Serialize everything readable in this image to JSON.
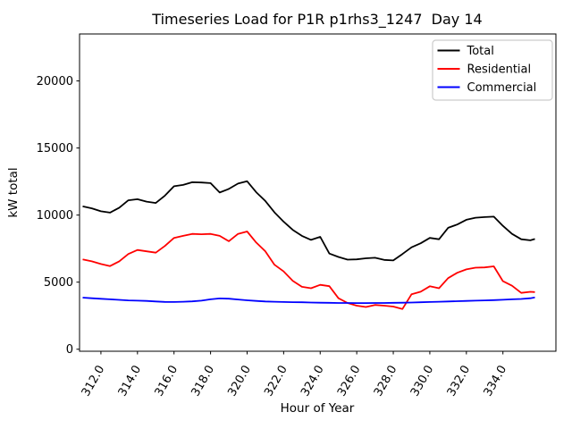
{
  "chart_data": {
    "type": "line",
    "title": "Timeseries Load for P1R p1rhs3_1247  Day 14",
    "xlabel": "Hour of Year",
    "ylabel": "kW total",
    "xlim": [
      310.83,
      336.9
    ],
    "ylim": [
      -150,
      23500
    ],
    "grid": false,
    "background": "#ffffff",
    "xticks": [
      312,
      314,
      316,
      318,
      320,
      322,
      324,
      326,
      328,
      330,
      332,
      334
    ],
    "xtick_labels": [
      "312.0",
      "314.0",
      "316.0",
      "318.0",
      "320.0",
      "322.0",
      "324.0",
      "326.0",
      "328.0",
      "330.0",
      "332.0",
      "334.0"
    ],
    "yticks": [
      0,
      5000,
      10000,
      15000,
      20000
    ],
    "ytick_labels": [
      "0",
      "5000",
      "10000",
      "15000",
      "20000"
    ],
    "legend": {
      "position": "upper right",
      "border_color": "#cccccc",
      "background": "#ffffff"
    },
    "x": [
      311,
      311.5,
      312,
      312.5,
      313,
      313.5,
      314,
      314.5,
      315,
      315.5,
      316,
      316.5,
      317,
      317.5,
      318,
      318.5,
      319,
      319.5,
      320,
      320.5,
      321,
      321.5,
      322,
      322.5,
      323,
      323.5,
      324,
      324.5,
      325,
      325.5,
      326,
      326.5,
      327,
      327.5,
      328,
      328.5,
      329,
      329.5,
      330,
      330.5,
      331,
      331.5,
      332,
      332.5,
      333,
      333.5,
      334,
      334.5,
      335,
      335.5,
      335.75
    ],
    "series": [
      {
        "name": "Total",
        "color": "#000000",
        "values": [
          10650,
          10500,
          10280,
          10180,
          10550,
          11100,
          11180,
          11000,
          10900,
          11450,
          12150,
          12250,
          12450,
          12430,
          12380,
          11680,
          11950,
          12350,
          12520,
          11700,
          11050,
          10200,
          9500,
          8900,
          8450,
          8150,
          8380,
          7130,
          6880,
          6680,
          6700,
          6780,
          6820,
          6660,
          6620,
          7100,
          7600,
          7900,
          8300,
          8200,
          9050,
          9300,
          9650,
          9800,
          9850,
          9880,
          9200,
          8600,
          8200,
          8120,
          8220
        ]
      },
      {
        "name": "Residential",
        "color": "#ff0000",
        "values": [
          6700,
          6550,
          6350,
          6200,
          6550,
          7100,
          7400,
          7300,
          7200,
          7700,
          8300,
          8450,
          8600,
          8570,
          8600,
          8450,
          8050,
          8600,
          8780,
          7950,
          7300,
          6300,
          5800,
          5100,
          4650,
          4550,
          4800,
          4700,
          3800,
          3450,
          3250,
          3150,
          3300,
          3250,
          3180,
          3000,
          4100,
          4290,
          4690,
          4550,
          5300,
          5700,
          5950,
          6080,
          6100,
          6180,
          5070,
          4730,
          4200,
          4280,
          4260
        ]
      },
      {
        "name": "Commercial",
        "color": "#0000ff",
        "values": [
          3850,
          3800,
          3760,
          3720,
          3680,
          3640,
          3620,
          3600,
          3560,
          3530,
          3520,
          3540,
          3570,
          3620,
          3720,
          3790,
          3770,
          3710,
          3650,
          3600,
          3560,
          3540,
          3520,
          3510,
          3500,
          3480,
          3470,
          3460,
          3450,
          3450,
          3440,
          3440,
          3450,
          3450,
          3460,
          3470,
          3480,
          3500,
          3520,
          3540,
          3560,
          3580,
          3600,
          3620,
          3640,
          3660,
          3690,
          3720,
          3750,
          3800,
          3860
        ]
      }
    ]
  }
}
